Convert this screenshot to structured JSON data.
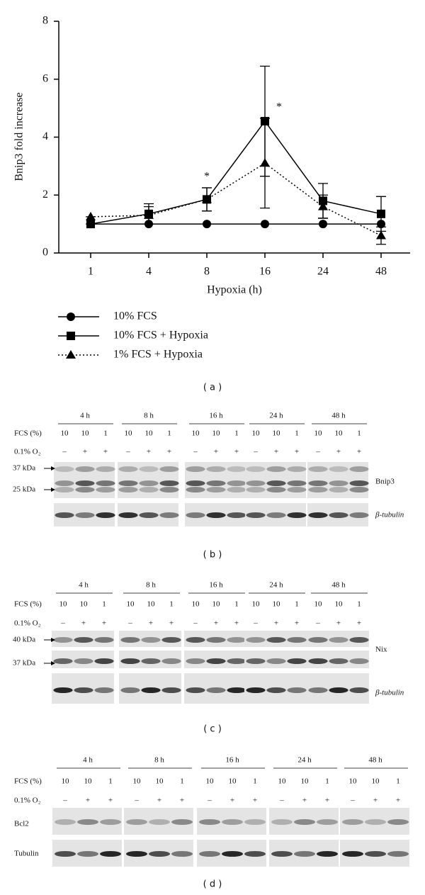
{
  "chart_data": {
    "type": "line",
    "ylabel": "Bnip3 fold increase",
    "xlabel": "Hypoxia (h)",
    "categories": [
      "1",
      "4",
      "8",
      "16",
      "24",
      "48"
    ],
    "ylim": [
      0,
      8
    ],
    "yticks": [
      0,
      2,
      4,
      6,
      8
    ],
    "legend": "below",
    "annotations": [
      "*",
      "*"
    ],
    "series": [
      {
        "name": "10% FCS",
        "color": "#000000",
        "marker": "circle",
        "dash": "solid",
        "values": [
          1,
          1,
          1,
          1,
          1,
          1
        ]
      },
      {
        "name": "10% FCS + Hypoxia",
        "color": "#000000",
        "marker": "square",
        "dash": "solid",
        "values": [
          1,
          1.35,
          1.85,
          4.55,
          1.8,
          1.35
        ],
        "errors": [
          0,
          0.35,
          0.4,
          1.9,
          0.6,
          0.6
        ]
      },
      {
        "name": "1% FCS + Hypoxia",
        "color": "#000000",
        "marker": "triangle",
        "dash": "dotted",
        "values": [
          1.25,
          1.3,
          1.85,
          3.1,
          1.6,
          0.6
        ],
        "errors": [
          0,
          0.3,
          0.4,
          1.55,
          0.4,
          0.3
        ]
      }
    ]
  },
  "caption": "( a )",
  "panels": [
    {
      "label": "( b )",
      "fcs_label": "FCS (%)",
      "o2_label": "0.1% O₂",
      "markers": [
        "37 kDa",
        "25 kDa"
      ],
      "proteins": [
        "Bnip3",
        "β-tubulin"
      ],
      "groups": [
        {
          "time": "4 h",
          "fcs": [
            "10",
            "10",
            "1"
          ],
          "o2": [
            "–",
            "+",
            "+"
          ]
        },
        {
          "time": "8 h",
          "fcs": [
            "10",
            "10",
            "1"
          ],
          "o2": [
            "–",
            "+",
            "+"
          ]
        },
        {
          "time": "16 h",
          "fcs": [
            "10",
            "10",
            "1"
          ],
          "o2": [
            "–",
            "+",
            "+"
          ]
        },
        {
          "time": "24 h",
          "fcs": [
            "10",
            "10",
            "1"
          ],
          "o2": [
            "–",
            "+",
            "+"
          ]
        },
        {
          "time": "48 h",
          "fcs": [
            "10",
            "10",
            "1"
          ],
          "o2": [
            "–",
            "+",
            "+"
          ]
        }
      ]
    },
    {
      "label": "( c )",
      "fcs_label": "FCS (%)",
      "o2_label": "0.1% O₂",
      "markers": [
        "40 kDa",
        "37 kDa"
      ],
      "proteins": [
        "Nix",
        "β-tubulin"
      ],
      "groups": [
        {
          "time": "4 h",
          "fcs": [
            "10",
            "10",
            "1"
          ],
          "o2": [
            "–",
            "+",
            "+"
          ]
        },
        {
          "time": "8 h",
          "fcs": [
            "10",
            "10",
            "1"
          ],
          "o2": [
            "–",
            "+",
            "+"
          ]
        },
        {
          "time": "16 h",
          "fcs": [
            "10",
            "10",
            "1"
          ],
          "o2": [
            "–",
            "+",
            "+"
          ]
        },
        {
          "time": "24 h",
          "fcs": [
            "10",
            "10",
            "1"
          ],
          "o2": [
            "–",
            "+",
            "+"
          ]
        },
        {
          "time": "48 h",
          "fcs": [
            "10",
            "10",
            "1"
          ],
          "o2": [
            "–",
            "+",
            "+"
          ]
        }
      ]
    },
    {
      "label": "( d )",
      "fcs_label": "FCS (%)",
      "o2_label": "0.1% O₂",
      "markers": [],
      "proteins": [
        "Bcl2",
        "Tubulin"
      ],
      "groups": [
        {
          "time": "4 h",
          "fcs": [
            "10",
            "10",
            "1"
          ],
          "o2": [
            "–",
            "+",
            "+"
          ]
        },
        {
          "time": "8 h",
          "fcs": [
            "10",
            "10",
            "1"
          ],
          "o2": [
            "–",
            "+",
            "+"
          ]
        },
        {
          "time": "16 h",
          "fcs": [
            "10",
            "10",
            "1"
          ],
          "o2": [
            "–",
            "+",
            "+"
          ]
        },
        {
          "time": "24 h",
          "fcs": [
            "10",
            "10",
            "1"
          ],
          "o2": [
            "–",
            "+",
            "+"
          ]
        },
        {
          "time": "48 h",
          "fcs": [
            "10",
            "10",
            "1"
          ],
          "o2": [
            "–",
            "+",
            "+"
          ]
        }
      ]
    }
  ]
}
